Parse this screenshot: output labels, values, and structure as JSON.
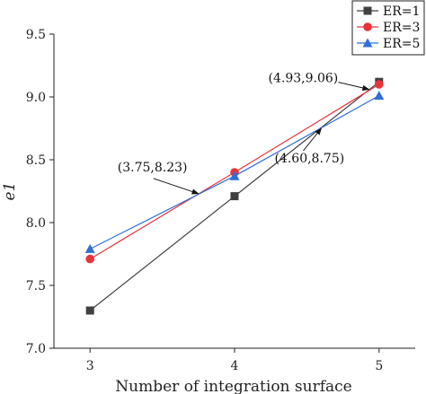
{
  "chart_data": {
    "type": "line",
    "xlabel": "Number of integration surface",
    "ylabel": "e1",
    "x": [
      3,
      4,
      5
    ],
    "xlim": [
      2.75,
      5.25
    ],
    "ylim": [
      7.0,
      9.5
    ],
    "xticks": [
      3,
      4,
      5
    ],
    "yticks": [
      7.0,
      7.5,
      8.0,
      8.5,
      9.0,
      9.5
    ],
    "grid": false,
    "legend_position": "top-right",
    "series": [
      {
        "name": "ER=1",
        "values": [
          7.3,
          8.21,
          9.12
        ],
        "color": "#404040",
        "marker": "square"
      },
      {
        "name": "ER=3",
        "values": [
          7.71,
          8.4,
          9.1
        ],
        "color": "#e8333a",
        "marker": "circle"
      },
      {
        "name": "ER=5",
        "values": [
          7.79,
          8.37,
          9.01
        ],
        "color": "#2f6fd6",
        "marker": "triangle"
      }
    ],
    "annotations": [
      {
        "text": "(3.75,8.23)",
        "x": 3.75,
        "y": 8.23
      },
      {
        "text": "(4.93,9.06)",
        "x": 4.93,
        "y": 9.06
      },
      {
        "text": "(4.60,8.75)",
        "x": 4.6,
        "y": 8.75
      }
    ]
  }
}
